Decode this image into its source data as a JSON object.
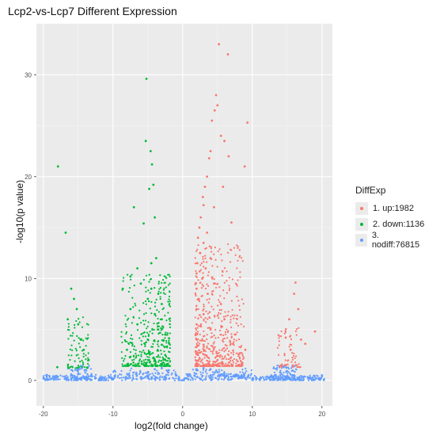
{
  "chart_data": {
    "type": "scatter",
    "title": "Lcp2-vs-Lcp7 Different Expression",
    "xlabel": "log2(fold change)",
    "ylabel": "-log10(p value)",
    "xlim": [
      -21,
      21.5
    ],
    "ylim": [
      -2.5,
      35
    ],
    "xticks": [
      -20,
      -10,
      0,
      10,
      20
    ],
    "yticks": [
      0,
      10,
      20,
      30
    ],
    "grid": true,
    "legend_title": "DiffExp",
    "legend_placement": "right",
    "series": [
      {
        "name": "1. up:1982",
        "color": "#f8766d",
        "points": [
          [
            5.2,
            33
          ],
          [
            6.5,
            32
          ],
          [
            9.3,
            25.3
          ],
          [
            4.8,
            28
          ],
          [
            5.0,
            27
          ],
          [
            4.6,
            26.5
          ],
          [
            4.2,
            25.5
          ],
          [
            5.5,
            24
          ],
          [
            6.0,
            23.5
          ],
          [
            4.0,
            22.5
          ],
          [
            3.8,
            21.8
          ],
          [
            6.6,
            22
          ],
          [
            8.9,
            21
          ],
          [
            3.5,
            20
          ],
          [
            3.2,
            19
          ],
          [
            5.8,
            19
          ],
          [
            2.9,
            18
          ],
          [
            3.0,
            17.2
          ],
          [
            4.5,
            17
          ],
          [
            2.6,
            16
          ],
          [
            7.0,
            15.5
          ],
          [
            2.4,
            15
          ],
          [
            3.5,
            14.5
          ],
          [
            2.2,
            14
          ],
          [
            3.0,
            13.5
          ],
          [
            2.5,
            12.5
          ],
          [
            4.0,
            12
          ],
          [
            2.1,
            11.5
          ],
          [
            3.3,
            11
          ],
          [
            2.0,
            10.5
          ],
          [
            2.8,
            10
          ],
          [
            4.5,
            9.5
          ],
          [
            2.0,
            9
          ],
          [
            3.6,
            8.5
          ],
          [
            2.3,
            8
          ],
          [
            5.5,
            7.5
          ],
          [
            2.0,
            7
          ],
          [
            3.0,
            6.5
          ],
          [
            6.0,
            6
          ],
          [
            2.0,
            5.5
          ],
          [
            4.0,
            5
          ],
          [
            7.5,
            4.5
          ],
          [
            2.0,
            4
          ],
          [
            3.0,
            3.5
          ],
          [
            9.0,
            3
          ],
          [
            2.2,
            2.5
          ],
          [
            5.0,
            2
          ],
          [
            2.0,
            1.6
          ],
          [
            8.0,
            1.5
          ],
          [
            16.2,
            9.6
          ],
          [
            16.0,
            8.5
          ],
          [
            16.6,
            7
          ],
          [
            15.3,
            6
          ],
          [
            17.0,
            4
          ],
          [
            19.0,
            4.8
          ],
          [
            17.6,
            3.6
          ],
          [
            14.8,
            4.2
          ],
          [
            15.5,
            3
          ]
        ]
      },
      {
        "name": "2. down:1136",
        "color": "#00ba38",
        "points": [
          [
            -5.2,
            29.6
          ],
          [
            -5.3,
            23.5
          ],
          [
            -4.6,
            22.5
          ],
          [
            -4.4,
            21.2
          ],
          [
            -4.2,
            19.2
          ],
          [
            -4.8,
            18.8
          ],
          [
            -7.0,
            17
          ],
          [
            -4.0,
            16
          ],
          [
            -5.6,
            15.4
          ],
          [
            -17.9,
            21
          ],
          [
            -16.8,
            14.5
          ],
          [
            -7.5,
            10.2
          ],
          [
            -6.5,
            11
          ],
          [
            -4.5,
            11.5
          ],
          [
            -3.8,
            12
          ],
          [
            -6.0,
            9.5
          ],
          [
            -4.5,
            9
          ],
          [
            -3.5,
            8.5
          ],
          [
            -8.6,
            9
          ],
          [
            -5.0,
            8
          ],
          [
            -3.0,
            7.5
          ],
          [
            -7.5,
            7
          ],
          [
            -4.0,
            6.5
          ],
          [
            -3.0,
            6
          ],
          [
            -6.5,
            5.5
          ],
          [
            -3.5,
            5
          ],
          [
            -2.5,
            4.5
          ],
          [
            -5.0,
            4
          ],
          [
            -3.0,
            3.5
          ],
          [
            -8.0,
            3
          ],
          [
            -2.5,
            2.5
          ],
          [
            -4.0,
            2
          ],
          [
            -2.2,
            1.6
          ],
          [
            -16.0,
            9
          ],
          [
            -15.6,
            8
          ],
          [
            -15.2,
            7
          ],
          [
            -15.0,
            5.5
          ],
          [
            -14.6,
            4
          ],
          [
            -14.2,
            3
          ],
          [
            -13.5,
            2
          ],
          [
            -16.5,
            6
          ],
          [
            -18.0,
            1.3
          ]
        ]
      },
      {
        "name": "3. nodiff:76815",
        "color": "#619cff",
        "points": [
          [
            -19.5,
            0.4
          ],
          [
            -18,
            0.3
          ],
          [
            -16,
            0.2
          ],
          [
            -15,
            0.6
          ],
          [
            -14.5,
            1.2
          ],
          [
            -14,
            0.3
          ],
          [
            -12,
            0.1
          ],
          [
            -10,
            0.1
          ],
          [
            -8,
            0.2
          ],
          [
            -6,
            0.3
          ],
          [
            -5,
            0.8
          ],
          [
            -4,
            1.1
          ],
          [
            -3,
            1.2
          ],
          [
            -2,
            1.0
          ],
          [
            -1,
            0.6
          ],
          [
            -0.5,
            0.2
          ],
          [
            0.5,
            0.2
          ],
          [
            1,
            0.6
          ],
          [
            2,
            1.0
          ],
          [
            3,
            1.2
          ],
          [
            4,
            1.1
          ],
          [
            5,
            0.8
          ],
          [
            6,
            0.5
          ],
          [
            8,
            0.2
          ],
          [
            10,
            0.1
          ],
          [
            12,
            0.1
          ],
          [
            13,
            0.4
          ],
          [
            14,
            0.8
          ],
          [
            14.5,
            1.3
          ],
          [
            15,
            0.9
          ],
          [
            16,
            0.5
          ],
          [
            18,
            0.3
          ],
          [
            20,
            0.5
          ]
        ]
      }
    ]
  }
}
